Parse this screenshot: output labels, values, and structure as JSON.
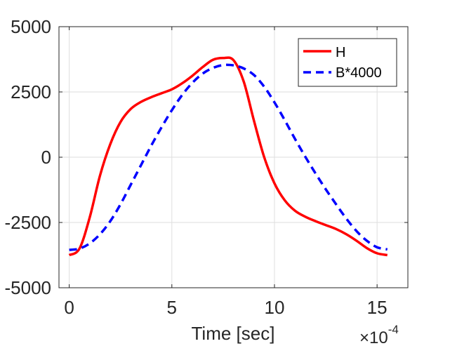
{
  "chart_data": {
    "type": "line",
    "title": "",
    "xlabel": "Time [sec]",
    "ylabel": "",
    "x_exponent_base": "×10",
    "x_exponent_power": "-4",
    "xlim": [
      -0.5,
      16.5
    ],
    "ylim": [
      -5000,
      5000
    ],
    "xticks": [
      0,
      5,
      10,
      15
    ],
    "xtick_labels": [
      "0",
      "5",
      "10",
      "15"
    ],
    "yticks": [
      -5000,
      -2500,
      0,
      2500,
      5000
    ],
    "ytick_labels": [
      "-5000",
      "-2500",
      "0",
      "2500",
      "5000"
    ],
    "grid": true,
    "legend_position": "top-right",
    "series": [
      {
        "name": "H",
        "color": "#ff0000",
        "style": "solid",
        "x": [
          0,
          0.5,
          1,
          1.5,
          2,
          2.5,
          3,
          3.5,
          4,
          4.5,
          5,
          5.5,
          6,
          6.5,
          7,
          7.5,
          8,
          8.5,
          9,
          9.5,
          10,
          10.5,
          11,
          11.5,
          12,
          12.5,
          13,
          13.5,
          14,
          14.5,
          15,
          15.5
        ],
        "y": [
          -3750,
          -3500,
          -2300,
          -700,
          500,
          1350,
          1850,
          2120,
          2300,
          2450,
          2600,
          2830,
          3120,
          3450,
          3730,
          3800,
          3720,
          2900,
          1400,
          0,
          -1000,
          -1650,
          -2050,
          -2280,
          -2450,
          -2600,
          -2750,
          -2950,
          -3200,
          -3480,
          -3680,
          -3750
        ]
      },
      {
        "name": "B*4000",
        "color": "#0000ff",
        "style": "dashed",
        "x": [
          0,
          0.5,
          1,
          1.5,
          2,
          2.5,
          3,
          3.5,
          4,
          4.5,
          5,
          5.5,
          6,
          6.5,
          7,
          7.5,
          8,
          8.5,
          9,
          9.5,
          10,
          10.5,
          11,
          11.5,
          12,
          12.5,
          13,
          13.5,
          14,
          14.5,
          15,
          15.5
        ],
        "y": [
          -3550,
          -3500,
          -3300,
          -2950,
          -2450,
          -1800,
          -1050,
          -300,
          450,
          1150,
          1800,
          2380,
          2850,
          3200,
          3420,
          3530,
          3520,
          3400,
          3150,
          2700,
          2100,
          1420,
          700,
          20,
          -620,
          -1230,
          -1800,
          -2350,
          -2830,
          -3200,
          -3450,
          -3530
        ]
      }
    ]
  }
}
